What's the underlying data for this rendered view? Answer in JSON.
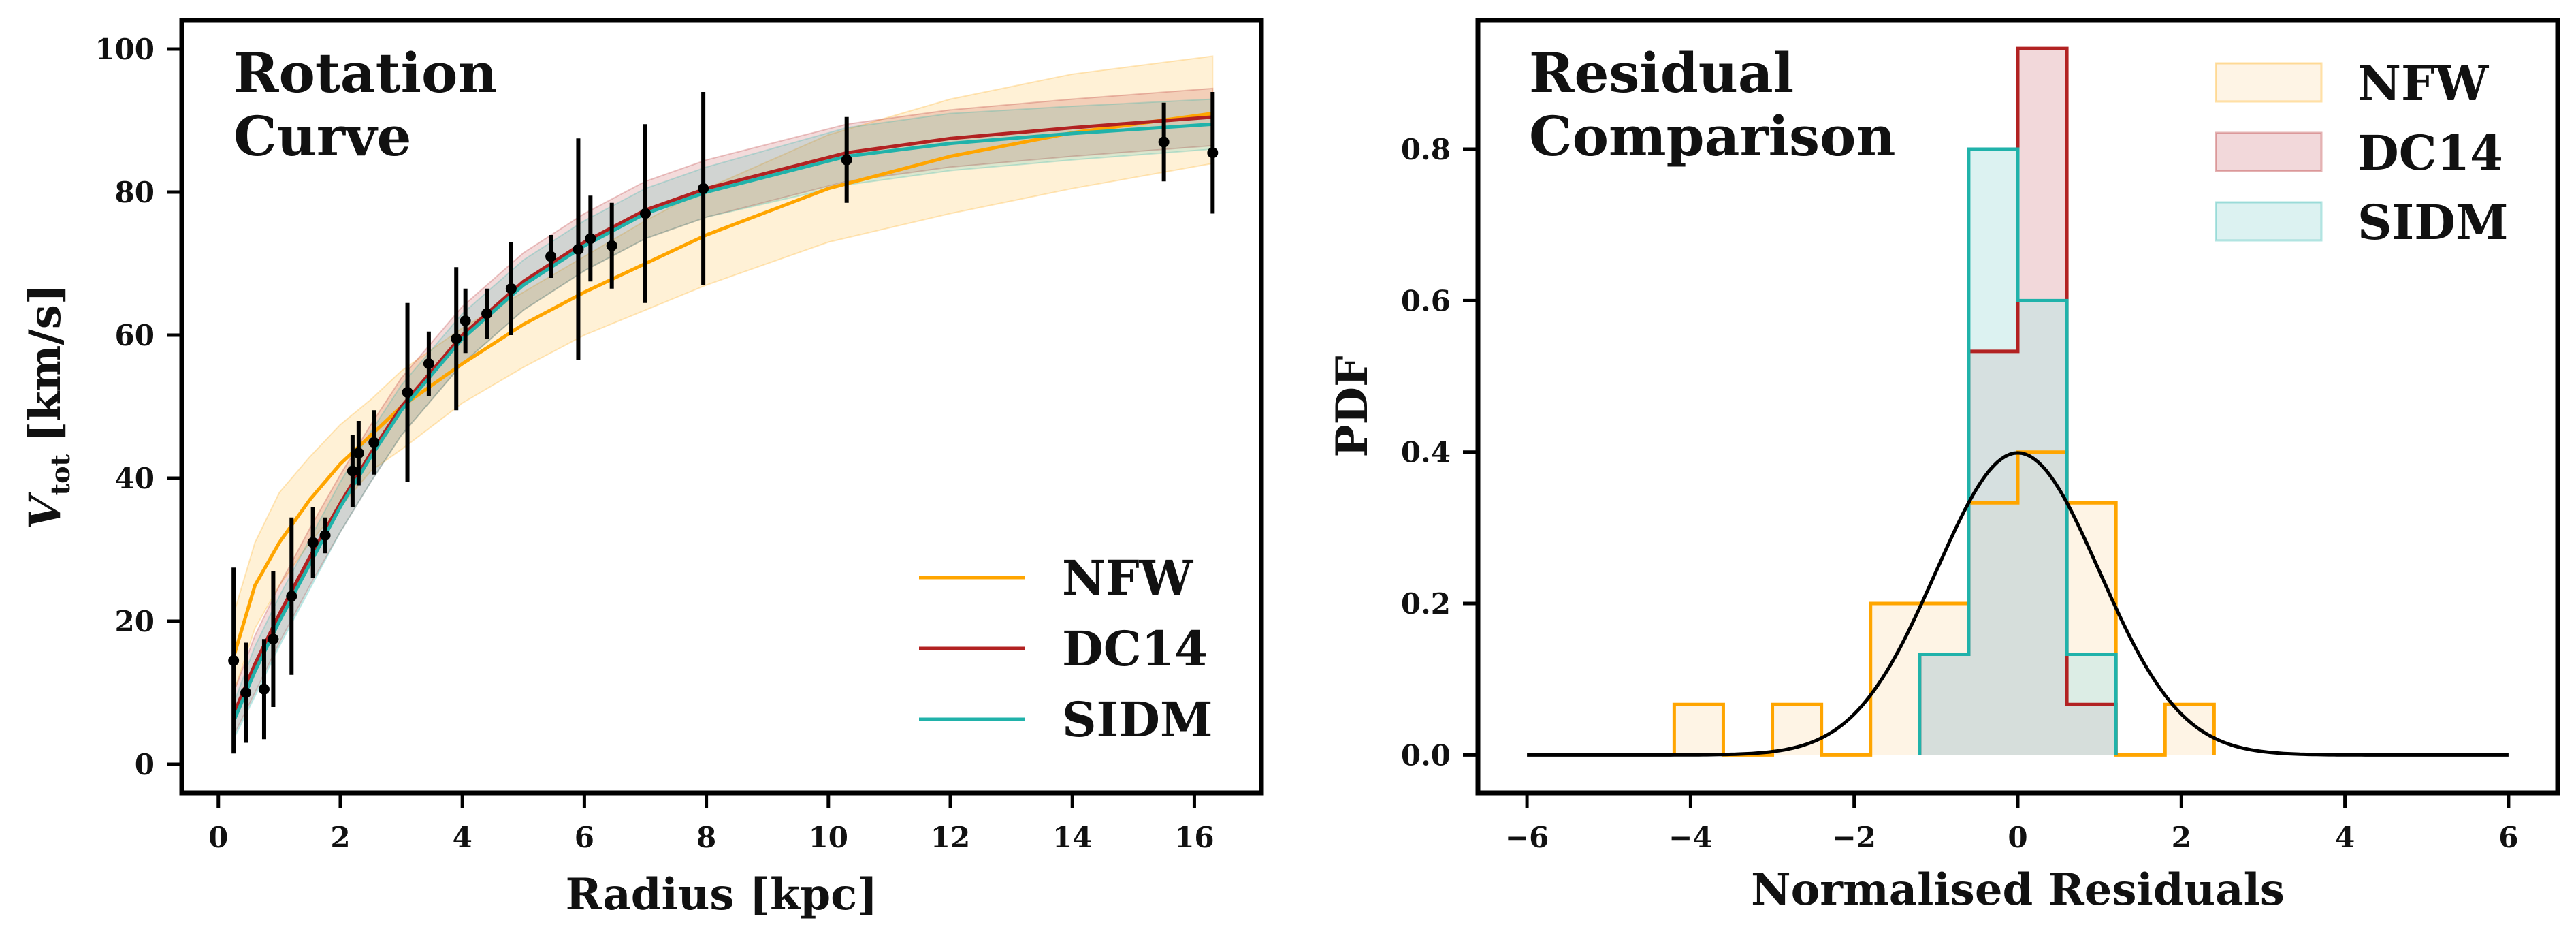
{
  "chart_data": [
    {
      "type": "line",
      "title": "Rotation Curve",
      "title_lines": [
        "Rotation",
        "Curve"
      ],
      "xlabel": "Radius [kpc]",
      "ylabel": "V_tot [km/s]",
      "ylabel_main": "V",
      "ylabel_sub": "tot",
      "ylabel_unit": "[km/s]",
      "xlim": [
        -0.6,
        17.1
      ],
      "ylim": [
        -4,
        104
      ],
      "xticks": [
        0,
        2,
        4,
        6,
        8,
        10,
        12,
        14,
        16
      ],
      "yticks": [
        0,
        20,
        40,
        60,
        80,
        100
      ],
      "legend_position": "lower-right",
      "series": [
        {
          "name": "NFW",
          "color": "#FFA500",
          "x": [
            0.25,
            0.6,
            1.0,
            1.5,
            2.0,
            2.5,
            3.0,
            4.0,
            5.0,
            6.0,
            7.0,
            8.0,
            10.0,
            12.0,
            14.0,
            16.3
          ],
          "y": [
            15,
            25,
            31,
            37,
            42,
            46,
            50,
            56,
            61.5,
            66,
            70,
            74,
            80.5,
            85,
            88.3,
            91
          ],
          "band_low": [
            10,
            19,
            25,
            31,
            36,
            41,
            44,
            50.5,
            55.5,
            60,
            63.5,
            67,
            73,
            77,
            80.5,
            84
          ],
          "band_high": [
            21,
            31,
            38,
            43,
            47.5,
            51,
            55,
            61,
            66,
            71,
            76,
            80.5,
            88,
            93,
            96.5,
            99
          ]
        },
        {
          "name": "DC14",
          "color": "#B22222",
          "x": [
            0.25,
            0.6,
            1.0,
            1.5,
            2.0,
            2.5,
            3.0,
            4.0,
            5.0,
            6.0,
            7.0,
            8.0,
            10.3,
            12.0,
            14.0,
            16.3
          ],
          "y": [
            7,
            14,
            21,
            29,
            36.5,
            43.5,
            50,
            60,
            67.5,
            73,
            77.5,
            80.5,
            85.5,
            87.5,
            89,
            90.5
          ],
          "band_low": [
            4,
            10,
            17,
            25,
            32.5,
            39.5,
            46,
            56,
            63.5,
            69,
            73.5,
            76.5,
            81.5,
            83.5,
            85,
            86.5
          ],
          "band_high": [
            10,
            18,
            25,
            33,
            40.5,
            47.5,
            54,
            64,
            71.5,
            77,
            81.5,
            84.5,
            89.5,
            91.5,
            93,
            94.5
          ]
        },
        {
          "name": "SIDM",
          "color": "#20B2AA",
          "x": [
            0.25,
            0.6,
            1.0,
            1.5,
            2.0,
            2.5,
            3.0,
            4.0,
            5.0,
            6.0,
            7.0,
            8.0,
            10.3,
            12.0,
            14.0,
            16.3
          ],
          "y": [
            6,
            13,
            20,
            28,
            36,
            43,
            49.5,
            59.5,
            67,
            72.5,
            77,
            80,
            85,
            86.8,
            88.2,
            89.5
          ],
          "band_low": [
            3.5,
            9.5,
            16.5,
            24.5,
            32.5,
            39.5,
            46,
            56,
            63.5,
            69,
            73.5,
            76.5,
            81,
            83,
            84.5,
            86
          ],
          "band_high": [
            8.5,
            16.5,
            23.5,
            31.5,
            39.5,
            46.5,
            53,
            63,
            70.5,
            76,
            80.5,
            83.5,
            89,
            91,
            92,
            93
          ]
        }
      ],
      "observed": {
        "x": [
          0.25,
          0.45,
          0.75,
          0.9,
          1.2,
          1.55,
          1.75,
          2.2,
          2.3,
          2.55,
          3.1,
          3.45,
          3.9,
          4.05,
          4.4,
          4.8,
          5.45,
          5.9,
          6.1,
          6.45,
          7.0,
          7.95,
          10.3,
          15.5,
          16.3
        ],
        "y": [
          14.5,
          10,
          10.5,
          17.5,
          23.5,
          31,
          32,
          41,
          43.5,
          45,
          52,
          56,
          59.5,
          62,
          63,
          66.5,
          71,
          72,
          73.5,
          72.5,
          77,
          80.5,
          84.5,
          87,
          85.5
        ],
        "yerr": [
          13,
          7,
          7,
          9.5,
          11,
          5,
          2.5,
          5,
          4.5,
          4.5,
          12.5,
          4.5,
          10,
          4.5,
          3.5,
          6.5,
          3,
          15.5,
          6,
          6,
          12.5,
          13.5,
          6,
          5.5,
          8.5
        ]
      }
    },
    {
      "type": "area",
      "title": "Residual Comparison",
      "title_lines": [
        "Residual",
        "Comparison"
      ],
      "xlabel": "Normalised Residuals",
      "ylabel": "PDF",
      "xlim": [
        -6.6,
        6.6
      ],
      "ylim": [
        -0.05,
        0.97
      ],
      "xticks": [
        -6,
        -4,
        -2,
        0,
        2,
        4,
        6
      ],
      "yticks": [
        0.0,
        0.2,
        0.4,
        0.6,
        0.8
      ],
      "tick_format": "1dp",
      "legend_position": "upper-right",
      "series": [
        {
          "name": "NFW",
          "color": "#FFA500",
          "fill": "#FDEBD0",
          "bin_edges": [
            -4.2,
            -3.6,
            -3.0,
            -2.4,
            -1.8,
            -0.6,
            0.0,
            0.6,
            1.2,
            1.8,
            2.4
          ],
          "values": [
            0.0667,
            0.0,
            0.0667,
            0.0,
            0.2,
            0.333,
            0.4,
            0.333,
            0.0,
            0.0667
          ]
        },
        {
          "name": "DC14",
          "color": "#B22222",
          "fill": "#E8B8BB",
          "bin_edges": [
            -1.2,
            -0.6,
            0.0,
            0.6,
            1.2
          ],
          "values": [
            0.133,
            0.533,
            0.933,
            0.0667
          ]
        },
        {
          "name": "SIDM",
          "color": "#20B2AA",
          "fill": "#BFE8E6",
          "bin_edges": [
            -1.2,
            -0.6,
            0.0,
            0.6,
            1.2
          ],
          "values": [
            0.133,
            0.8,
            0.6,
            0.133
          ]
        }
      ],
      "gaussian": {
        "mean": 0,
        "sigma": 1,
        "x_range": [
          -6,
          6
        ],
        "color": "#000000"
      }
    }
  ]
}
